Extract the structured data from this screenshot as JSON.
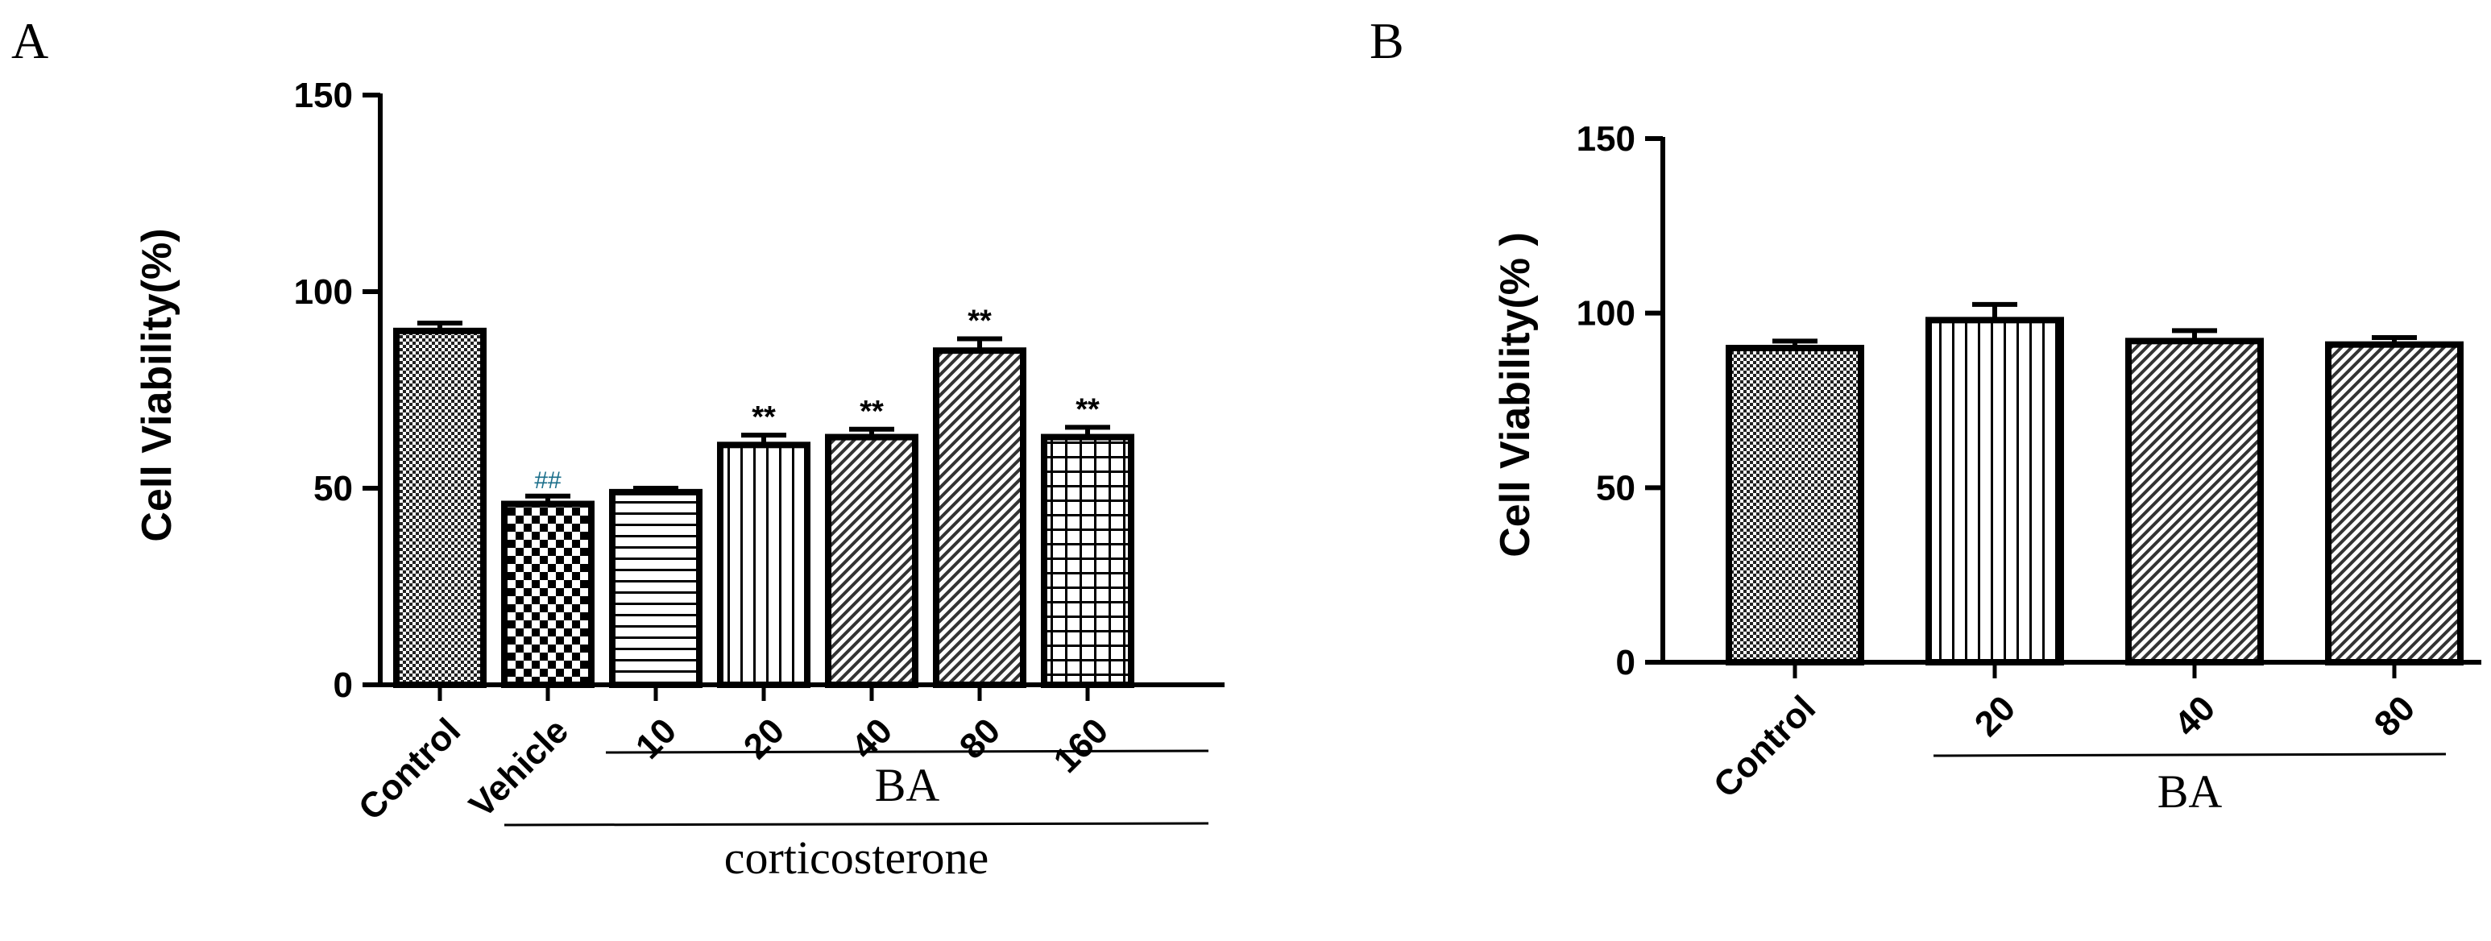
{
  "chart_data": [
    {
      "panel": "A",
      "type": "bar",
      "ylabel": "Cell Viability(%)",
      "ylim": [
        0,
        150
      ],
      "yticks": [
        "0",
        "50",
        "100",
        "150"
      ],
      "categories": [
        "Control",
        "Vehicle",
        "10",
        "20",
        "40",
        "80",
        "160"
      ],
      "values": [
        90,
        46,
        49,
        61,
        63,
        85,
        63
      ],
      "errors": [
        2,
        2,
        1,
        2.5,
        2,
        3,
        2.5
      ],
      "annotations": [
        "",
        "##",
        "",
        "**",
        "**",
        "**",
        "**"
      ],
      "patterns": [
        "check-fine",
        "checker",
        "hlines",
        "vlines",
        "diag",
        "diag",
        "grid"
      ],
      "groups": [
        {
          "label": "BA",
          "from": 2,
          "to": 6
        },
        {
          "label": "corticosterone",
          "from": 1,
          "to": 6
        }
      ]
    },
    {
      "panel": "B",
      "type": "bar",
      "ylabel": "Cell Viability(% )",
      "ylim": [
        0,
        150
      ],
      "yticks": [
        "0",
        "50",
        "100",
        "150"
      ],
      "categories": [
        "Control",
        "20",
        "40",
        "80"
      ],
      "values": [
        90,
        98,
        92,
        91
      ],
      "errors": [
        2,
        4.5,
        3,
        2
      ],
      "annotations": [
        "",
        "",
        "",
        ""
      ],
      "patterns": [
        "check-fine",
        "vlines",
        "diag",
        "diag"
      ],
      "groups": [
        {
          "label": "BA",
          "from": 1,
          "to": 3
        }
      ]
    }
  ]
}
